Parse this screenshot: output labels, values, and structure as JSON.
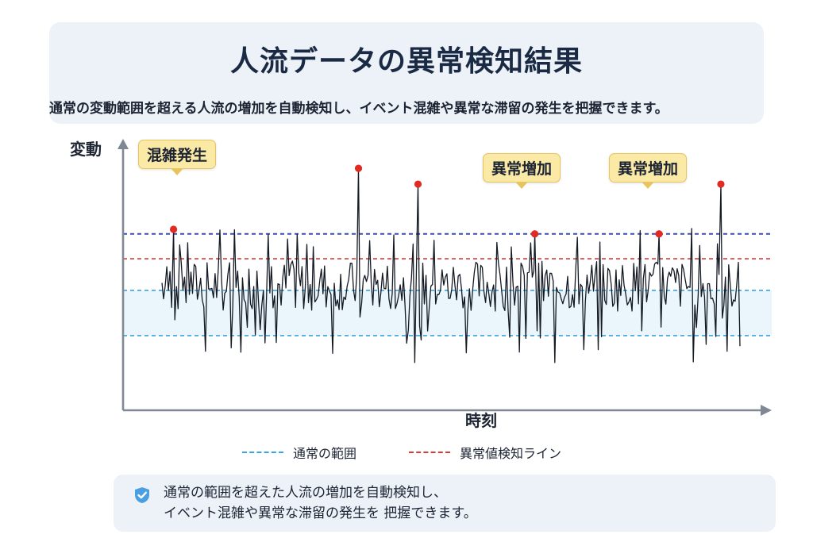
{
  "title": "人流データの異常検知結果",
  "subtitle": "通常の変動範囲を超える人流の増加を自動検知し、イベント混雑や異常な滞留の発生を把握できます。",
  "colors": {
    "normal_line": "#3aa3e0",
    "anomaly_line": "#d93a3a",
    "upper_line": "#3b4fb0",
    "series": "#141a24",
    "marker": "#e02a22",
    "callout_fill": "#fbe9a6"
  },
  "chart_data": {
    "type": "line",
    "ylabel": "変動",
    "xlabel": "時刻",
    "grid": false,
    "legend_position": "bottom",
    "legend": [
      {
        "label": "通常の範囲",
        "style": "dashed",
        "color": "#3aa3e0"
      },
      {
        "label": "異常値検知ライン",
        "style": "dashed",
        "color": "#d93a3a"
      }
    ],
    "reference_lines": {
      "normal_range_lower": -0.75,
      "normal_range_upper": 0.25,
      "anomaly_threshold": 0.95,
      "upper_dashed_line": 1.5
    },
    "ylim": [
      -2.4,
      3.25
    ],
    "xlim": [
      0,
      100
    ],
    "anomalies": [
      {
        "x": 2,
        "y": 1.6,
        "label": "混雑発生"
      },
      {
        "x": 34,
        "y": 2.95,
        "label": ""
      },
      {
        "x": 44.3,
        "y": 2.6,
        "label": ""
      },
      {
        "x": 64.5,
        "y": 1.5,
        "label": "異常増加"
      },
      {
        "x": 86,
        "y": 1.5,
        "label": "異常増加"
      },
      {
        "x": 96.7,
        "y": 2.6,
        "label": ""
      }
    ],
    "series": [
      {
        "type": "noise",
        "count": 360,
        "seed": 7,
        "base": 0.35,
        "amplitude": 0.4
      }
    ]
  },
  "note": {
    "line1": "通常の範囲を超えた人流の増加を自動検知し、",
    "line2": "イベント混雑や異常な滞留の発生を 把握できます。"
  }
}
